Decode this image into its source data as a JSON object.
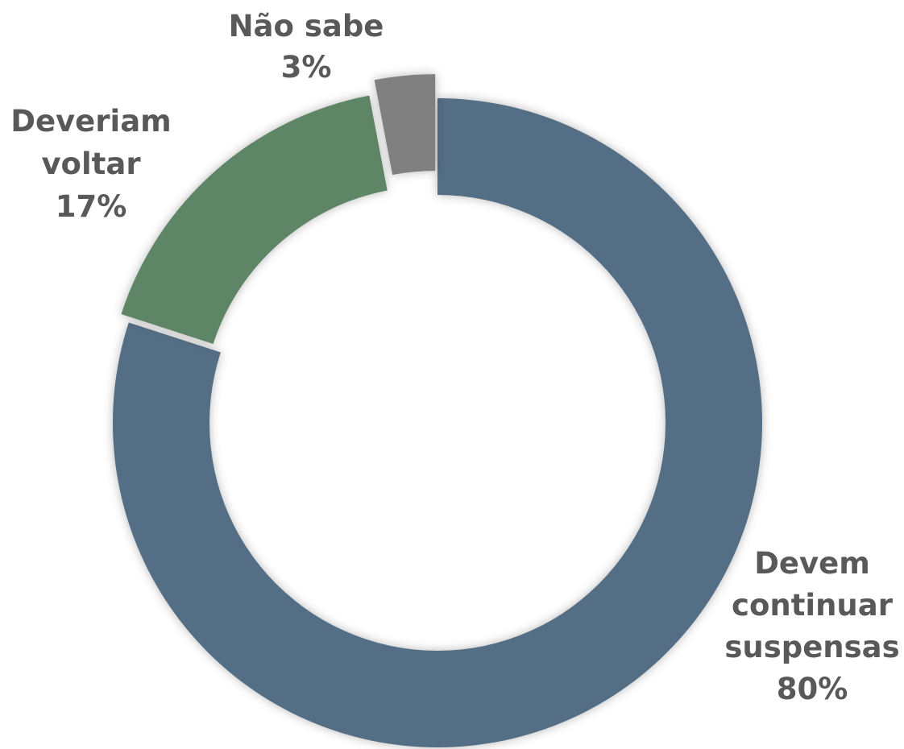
{
  "chart_data": {
    "type": "donut",
    "title": "",
    "slices": [
      {
        "key": "continuar",
        "lines": [
          "Devem",
          "continuar",
          "suspensas"
        ],
        "value": 80,
        "value_label": "80%",
        "color": "#546E85"
      },
      {
        "key": "voltar",
        "lines": [
          "Deveriam",
          "voltar"
        ],
        "value": 17,
        "value_label": "17%",
        "color": "#5D8566"
      },
      {
        "key": "nao-sabe",
        "lines": [
          "Não sabe"
        ],
        "value": 3,
        "value_label": "3%",
        "color": "#808080"
      }
    ],
    "start_angle": "12 o'clock",
    "direction": "clockwise",
    "legend": "none",
    "labels": "outside"
  }
}
